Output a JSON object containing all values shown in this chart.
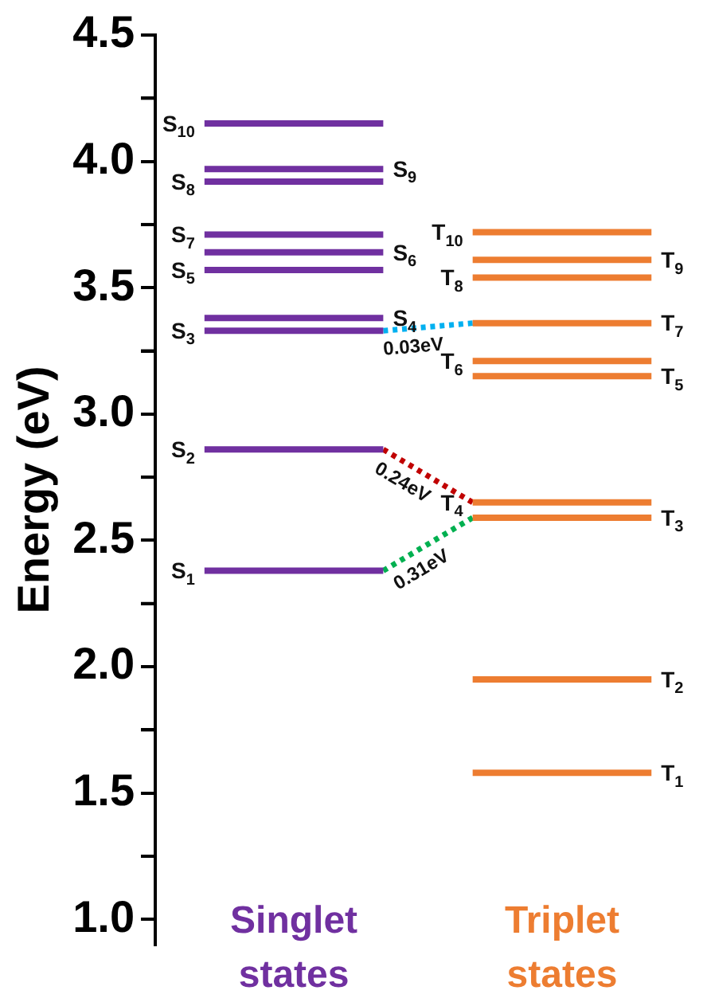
{
  "chart_data": {
    "type": "line",
    "ylabel": "Energy (eV)",
    "categories": [
      null,
      "Singlet states",
      null,
      null,
      "Triplet states",
      null
    ],
    "ylim": [
      0.9,
      4.5
    ],
    "yticks": [
      {
        "value": 1,
        "label": "1.0"
      },
      {
        "value": 1.25,
        "label": null
      },
      1.5,
      {
        "value": 1.75,
        "label": null
      },
      {
        "value": 2,
        "label": "2.0"
      },
      {
        "value": 2.25,
        "label": null
      },
      2.5,
      {
        "value": 2.75,
        "label": null
      },
      {
        "value": 3,
        "label": "3.0"
      },
      {
        "value": 3.25,
        "label": null
      },
      3.5,
      {
        "value": 3.75,
        "label": null
      },
      {
        "value": 4,
        "label": "4.0"
      },
      {
        "value": 4.25,
        "label": null
      },
      4.5
    ],
    "grid": false,
    "legend": false,
    "annotations": [
      "0.03eV",
      "0.24eV",
      "0.31eV"
    ],
    "series": [
      {
        "name": "S$_{1}$",
        "color": "#7030a0",
        "values": [
          2.38,
          2.38,
          2.38,
          null,
          null,
          null
        ]
      },
      {
        "name": "S$_{2}$",
        "color": "#7030a0",
        "values": [
          2.86,
          2.86,
          2.86,
          null,
          null,
          null
        ]
      },
      {
        "name": "S$_{3}$",
        "color": "#7030a0",
        "values": [
          3.33,
          3.33,
          3.33,
          null,
          null,
          null
        ]
      },
      {
        "name": "S$_{4}$",
        "color": "#7030a0",
        "values": [
          3.38,
          3.38,
          3.38,
          null,
          null,
          null
        ]
      },
      {
        "name": "S$_{5}$",
        "color": "#7030a0",
        "values": [
          3.57,
          3.57,
          3.57,
          null,
          null,
          null
        ]
      },
      {
        "name": "S$_{6}$",
        "color": "#7030a0",
        "values": [
          3.64,
          3.64,
          3.64,
          null,
          null,
          null
        ]
      },
      {
        "name": "S$_{7}$",
        "color": "#7030a0",
        "values": [
          3.71,
          3.71,
          3.71,
          null,
          null,
          null
        ]
      },
      {
        "name": "S$_{8}$",
        "color": "#7030a0",
        "values": [
          3.92,
          3.92,
          3.92,
          null,
          null,
          null
        ]
      },
      {
        "name": "S$_{9}$",
        "color": "#7030a0",
        "values": [
          3.97,
          3.97,
          3.97,
          null,
          null,
          null
        ]
      },
      {
        "name": "S$_{10}$",
        "color": "#7030a0",
        "values": [
          4.15,
          4.15,
          4.15,
          null,
          null,
          null
        ]
      },
      {
        "name": "T$_{1}$",
        "color": "#ed7d31",
        "values": [
          null,
          null,
          null,
          1.58,
          1.58,
          1.58
        ]
      },
      {
        "name": "T$_{2}$",
        "color": "#ed7d31",
        "values": [
          null,
          null,
          null,
          1.95,
          1.95,
          1.95
        ]
      },
      {
        "name": "T$_{3}$",
        "color": "#ed7d31",
        "values": [
          null,
          null,
          null,
          2.59,
          2.59,
          2.59
        ]
      },
      {
        "name": "T$_{4}$",
        "color": "#ed7d31",
        "values": [
          null,
          null,
          null,
          2.65,
          2.65,
          2.65
        ]
      },
      {
        "name": "T$_{5}$",
        "color": "#ed7d31",
        "values": [
          null,
          null,
          null,
          3.15,
          3.15,
          3.15
        ]
      },
      {
        "name": "T$_{6}$",
        "color": "#ed7d31",
        "values": [
          null,
          null,
          null,
          3.21,
          3.21,
          3.21
        ]
      },
      {
        "name": "T$_{7}$",
        "color": "#ed7d31",
        "values": [
          null,
          null,
          null,
          3.36,
          3.36,
          3.36
        ]
      },
      {
        "name": "T$_{8}$",
        "color": "#ed7d31",
        "values": [
          null,
          null,
          null,
          3.54,
          3.54,
          3.54
        ]
      },
      {
        "name": "T$_{9}$",
        "color": "#ed7d31",
        "values": [
          null,
          null,
          null,
          3.61,
          3.61,
          3.61
        ]
      },
      {
        "name": "T$_{10}$",
        "color": "#ed7d31",
        "values": [
          null,
          null,
          null,
          3.72,
          3.72,
          3.72
        ]
      },
      {
        "line_style": "dotted",
        "color": "#00b0f0",
        "values": [
          null,
          null,
          3.33,
          3.36,
          null,
          null
        ]
      },
      {
        "line_style": "dotted",
        "color": "#c00000",
        "values": [
          null,
          null,
          2.86,
          2.65,
          null,
          null
        ]
      },
      {
        "line_style": "dotted",
        "color": "#00b050",
        "values": [
          null,
          null,
          2.38,
          2.59,
          null,
          null
        ]
      }
    ]
  }
}
